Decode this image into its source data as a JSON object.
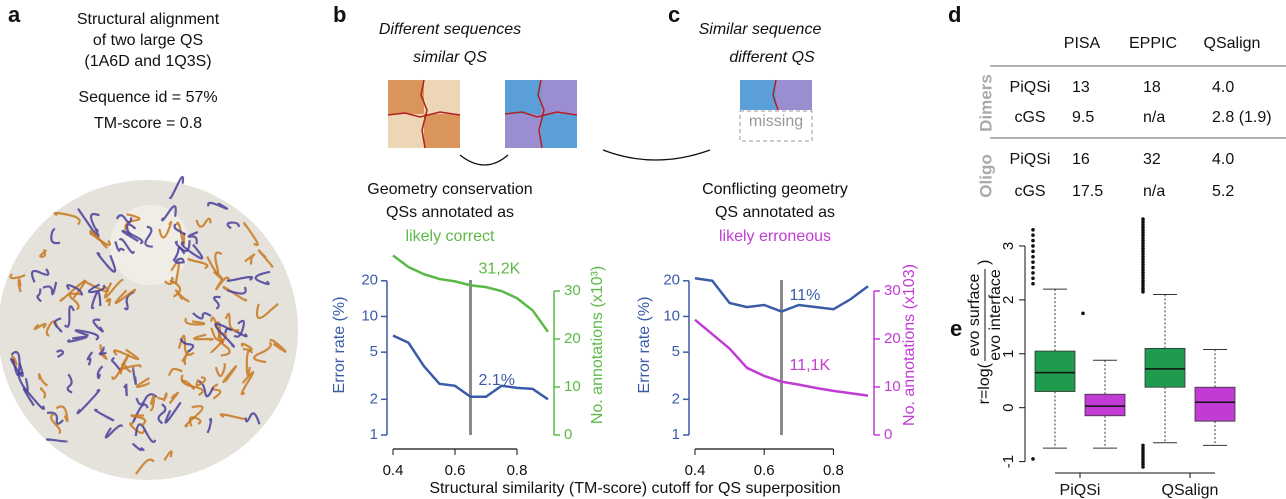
{
  "panel_a": {
    "label": "a",
    "title": [
      "Structural alignment",
      "of two large QS",
      "(1A6D and 1Q3S)"
    ],
    "stats": [
      "Sequence id = 57%",
      "TM-score = 0.8"
    ]
  },
  "panel_b": {
    "label": "b",
    "heading": [
      "Different sequences",
      "similar QS"
    ],
    "caption": [
      "Geometry conservation",
      "QSs annotated as",
      "likely correct"
    ]
  },
  "panel_c": {
    "label": "c",
    "heading": [
      "Similar sequence",
      "different QS"
    ],
    "missing": "missing",
    "caption": [
      "Conflicting geometry",
      "QS annotated as",
      "likely erroneous"
    ]
  },
  "panel_d": {
    "label": "d",
    "columns": [
      "PISA",
      "EPPIC",
      "QSalign"
    ],
    "groups": [
      {
        "name": "Dimers",
        "rows": [
          [
            "PiQSi",
            "13",
            "18",
            "4.0"
          ],
          [
            "cGS",
            "9.5",
            "n/a",
            "2.8 (1.9)"
          ]
        ]
      },
      {
        "name": "Oligo",
        "rows": [
          [
            "PiQSi",
            "16",
            "32",
            "4.0"
          ],
          [
            "cGS",
            "17.5",
            "n/a",
            "5.2"
          ]
        ]
      }
    ]
  },
  "panel_e": {
    "label": "e"
  },
  "chart_data": [
    {
      "type": "line",
      "log_y": true,
      "x": [
        0.4,
        0.45,
        0.5,
        0.55,
        0.6,
        0.65,
        0.7,
        0.75,
        0.8,
        0.85,
        0.9
      ],
      "xlim": [
        0.4,
        0.9
      ],
      "xticks": [
        0.4,
        0.6,
        0.8
      ],
      "ylim": [
        1,
        33
      ],
      "yticks": [
        1,
        2,
        5,
        10,
        20
      ],
      "y2lim": [
        0,
        37.5
      ],
      "y2ticks": [
        0,
        10,
        20,
        30
      ],
      "ylabel": "Error rate (%)",
      "y2label": "No. annotations (x10³)",
      "xlabel": "Structural similarity (TM-score) cutoff for QS superposition",
      "cutoff": 0.65,
      "series": [
        {
          "color": "#3a5ca8",
          "values": [
            6.9,
            6.0,
            3.8,
            2.7,
            2.6,
            2.1,
            2.1,
            2.6,
            2.5,
            2.45,
            2.0
          ],
          "annotation": "2.1%"
        },
        {
          "color": "#5cb946",
          "axis": "y2",
          "values": [
            37.4,
            35,
            33.5,
            32.5,
            32,
            31.2,
            30.8,
            30,
            28.5,
            26,
            21.5
          ],
          "annotation": "31,2K"
        }
      ]
    },
    {
      "type": "line",
      "log_y": true,
      "x": [
        0.4,
        0.45,
        0.5,
        0.55,
        0.6,
        0.65,
        0.7,
        0.75,
        0.8,
        0.85,
        0.9
      ],
      "xlim": [
        0.4,
        0.9
      ],
      "xticks": [
        0.4,
        0.6,
        0.8
      ],
      "ylim": [
        1,
        33
      ],
      "yticks": [
        1,
        2,
        5,
        10,
        20
      ],
      "y2lim": [
        0,
        37.5
      ],
      "y2ticks": [
        0,
        10,
        20,
        30
      ],
      "ylabel": "Error rate (%)",
      "y2label": "No. annotations (x103)",
      "cutoff": 0.65,
      "series": [
        {
          "color": "#3a5ca8",
          "values": [
            21,
            20,
            13,
            12,
            12.5,
            11,
            12.5,
            12,
            11.5,
            14,
            18
          ],
          "annotation": "11%"
        },
        {
          "color": "#c23bd4",
          "axis": "y2",
          "values": [
            24,
            21,
            18,
            14,
            12.3,
            11.1,
            10.5,
            9.8,
            9.2,
            8.7,
            8.2
          ],
          "annotation": "11,1K"
        }
      ]
    },
    {
      "type": "box",
      "categories": [
        "PiQSi",
        "QSalign"
      ],
      "ylim": [
        -1.1,
        3.5
      ],
      "yticks": [
        -1,
        0,
        1,
        2,
        3
      ],
      "ylabel": {
        "prefix": "r=log(",
        "numerator": "evo surface",
        "denominator": "evo interface",
        "suffix": ")"
      },
      "series": [
        {
          "color": "#1e9b4c",
          "boxes": [
            {
              "whislo": -0.75,
              "q1": 0.3,
              "med": 0.65,
              "q3": 1.05,
              "whishi": 2.2,
              "fliers": [
                2.3,
                2.4,
                2.5,
                2.6,
                2.7,
                2.8,
                2.9,
                3.0,
                3.1,
                3.2,
                3.3,
                -0.95
              ]
            },
            {
              "whislo": -0.65,
              "q1": 0.38,
              "med": 0.72,
              "q3": 1.1,
              "whishi": 2.1,
              "fliers": [
                2.15,
                2.2,
                2.25,
                2.3,
                2.35,
                2.4,
                2.45,
                2.5,
                2.55,
                2.6,
                2.65,
                2.7,
                2.75,
                2.8,
                2.85,
                2.9,
                2.95,
                3.0,
                3.05,
                3.1,
                3.15,
                3.2,
                3.25,
                3.3,
                3.35,
                3.4,
                3.45,
                3.5,
                -0.7,
                -0.75,
                -0.8,
                -0.85,
                -0.9,
                -0.95,
                -1.0,
                -1.05,
                -1.1
              ]
            }
          ]
        },
        {
          "color": "#c23bd4",
          "boxes": [
            {
              "whislo": -0.75,
              "q1": -0.15,
              "med": 0.03,
              "q3": 0.25,
              "whishi": 0.88,
              "fliers": [
                1.75
              ]
            },
            {
              "whislo": -0.7,
              "q1": -0.25,
              "med": 0.1,
              "q3": 0.38,
              "whishi": 1.08
            }
          ]
        }
      ]
    }
  ]
}
